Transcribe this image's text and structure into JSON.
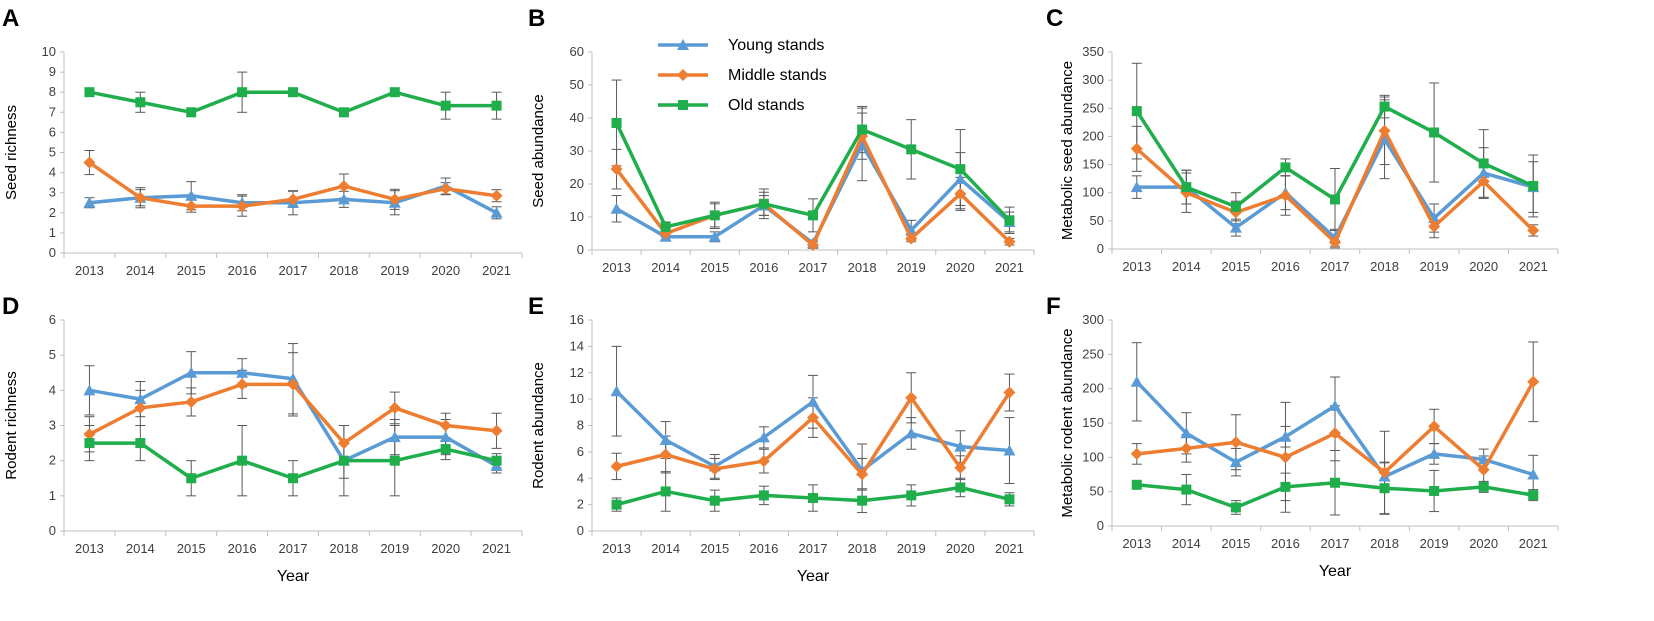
{
  "colors": {
    "young": "#5b9bd5",
    "middle": "#ed7d31",
    "old": "#1fae4b",
    "error": "#595959",
    "axis": "#bfbfbf"
  },
  "legend": [
    {
      "key": "young",
      "label": "Young stands",
      "marker": "triangle"
    },
    {
      "key": "middle",
      "label": "Middle stands",
      "marker": "diamond"
    },
    {
      "key": "old",
      "label": "Old stands",
      "marker": "square"
    }
  ],
  "chart_data": [
    {
      "type": "line",
      "panel": "A",
      "ylabel": "Seed richness",
      "xlabel": "",
      "categories": [
        "2013",
        "2014",
        "2015",
        "2016",
        "2017",
        "2018",
        "2019",
        "2020",
        "2021"
      ],
      "ylim": [
        0,
        10
      ],
      "ystep": 1,
      "series": [
        {
          "name": "Young stands",
          "key": "young",
          "values": [
            2.5,
            2.75,
            2.85,
            2.5,
            2.5,
            2.67,
            2.5,
            3.33,
            2.0
          ],
          "err": [
            0.25,
            0.5,
            0.7,
            0.4,
            0.6,
            0.4,
            0.6,
            0.4,
            0.3
          ]
        },
        {
          "name": "Middle stands",
          "key": "middle",
          "values": [
            4.5,
            2.75,
            2.33,
            2.33,
            2.67,
            3.33,
            2.67,
            3.2,
            2.85
          ],
          "err": [
            0.6,
            0.4,
            0.3,
            0.5,
            0.4,
            0.6,
            0.5,
            0.3,
            0.3
          ]
        },
        {
          "name": "Old stands",
          "key": "old",
          "values": [
            8.0,
            7.5,
            7.0,
            8.0,
            8.0,
            7.0,
            8.0,
            7.33,
            7.33
          ],
          "err": [
            0,
            0.5,
            0,
            1.0,
            0,
            0,
            0,
            0.67,
            0.67
          ]
        }
      ]
    },
    {
      "type": "line",
      "panel": "B",
      "ylabel": "Seed abundance",
      "xlabel": "",
      "categories": [
        "2013",
        "2014",
        "2015",
        "2016",
        "2017",
        "2018",
        "2019",
        "2020",
        "2021"
      ],
      "ylim": [
        0,
        60
      ],
      "ystep": 10,
      "series": [
        {
          "name": "Young stands",
          "key": "young",
          "values": [
            12.5,
            4.0,
            4.0,
            13.5,
            2.0,
            32.0,
            6.0,
            21.5,
            8.5
          ],
          "err": [
            4,
            1,
            1.5,
            3,
            1,
            11,
            3,
            8,
            3
          ]
        },
        {
          "name": "Middle stands",
          "key": "middle",
          "values": [
            24.5,
            5.0,
            10.5,
            14.0,
            1.5,
            34.5,
            3.5,
            17.0,
            2.5
          ],
          "err": [
            6,
            1,
            4,
            4.5,
            1,
            7,
            1,
            5,
            1
          ]
        },
        {
          "name": "Old stands",
          "key": "old",
          "values": [
            38.5,
            7.0,
            10.5,
            14.0,
            10.5,
            36.5,
            30.5,
            24.5,
            9.0
          ],
          "err": [
            13,
            1.5,
            3.5,
            3.5,
            5,
            7,
            9,
            12,
            4
          ]
        }
      ]
    },
    {
      "type": "line",
      "panel": "C",
      "ylabel": "Metabolic seed abundance",
      "xlabel": "",
      "categories": [
        "2013",
        "2014",
        "2015",
        "2016",
        "2017",
        "2018",
        "2019",
        "2020",
        "2021"
      ],
      "ylim": [
        0,
        350
      ],
      "ystep": 50,
      "series": [
        {
          "name": "Young stands",
          "key": "young",
          "values": [
            110,
            110,
            38,
            100,
            20,
            195,
            55,
            135,
            110
          ],
          "err": [
            20,
            30,
            15,
            30,
            15,
            70,
            25,
            45,
            45
          ]
        },
        {
          "name": "Middle stands",
          "key": "middle",
          "values": [
            178,
            100,
            65,
            95,
            12,
            210,
            40,
            120,
            33
          ],
          "err": [
            40,
            35,
            20,
            35,
            10,
            60,
            20,
            30,
            10
          ]
        },
        {
          "name": "Old stands",
          "key": "old",
          "values": [
            245,
            110,
            75,
            145,
            88,
            253,
            207,
            152,
            112
          ],
          "err": [
            85,
            30,
            25,
            15,
            55,
            20,
            88,
            60,
            55
          ]
        }
      ]
    },
    {
      "type": "line",
      "panel": "D",
      "ylabel": "Rodent richness",
      "xlabel": "Year",
      "categories": [
        "2013",
        "2014",
        "2015",
        "2016",
        "2017",
        "2018",
        "2019",
        "2020",
        "2021"
      ],
      "ylim": [
        0,
        6
      ],
      "ystep": 1,
      "series": [
        {
          "name": "Young stands",
          "key": "young",
          "values": [
            4.0,
            3.75,
            4.5,
            4.5,
            4.33,
            2.0,
            2.67,
            2.67,
            1.85
          ],
          "err": [
            0.7,
            0.5,
            0.6,
            0.4,
            1.0,
            0.5,
            0.5,
            0.5,
            0.2
          ]
        },
        {
          "name": "Middle stands",
          "key": "middle",
          "values": [
            2.75,
            3.5,
            3.67,
            4.17,
            4.17,
            2.5,
            3.5,
            3.0,
            2.85
          ],
          "err": [
            0.5,
            0.5,
            0.4,
            0.4,
            0.9,
            0.5,
            0.45,
            0.35,
            0.5
          ]
        },
        {
          "name": "Old stands",
          "key": "old",
          "values": [
            2.5,
            2.5,
            1.5,
            2.0,
            1.5,
            2.0,
            2.0,
            2.33,
            2.0
          ],
          "err": [
            0.5,
            0.5,
            0.5,
            1.0,
            0.5,
            1.0,
            1.0,
            0.3,
            0.2
          ]
        }
      ]
    },
    {
      "type": "line",
      "panel": "E",
      "ylabel": "Rodent abundance",
      "xlabel": "Year",
      "categories": [
        "2013",
        "2014",
        "2015",
        "2016",
        "2017",
        "2018",
        "2019",
        "2020",
        "2021"
      ],
      "ylim": [
        0,
        16
      ],
      "ystep": 2,
      "series": [
        {
          "name": "Young stands",
          "key": "young",
          "values": [
            10.6,
            6.9,
            4.9,
            7.1,
            9.8,
            4.6,
            7.4,
            6.4,
            6.1
          ],
          "err": [
            3.4,
            1.4,
            0.9,
            0.8,
            2.0,
            2.0,
            1.2,
            1.2,
            2.5
          ]
        },
        {
          "name": "Middle stands",
          "key": "middle",
          "values": [
            4.9,
            5.8,
            4.7,
            5.3,
            8.6,
            4.3,
            10.1,
            4.8,
            10.5
          ],
          "err": [
            1.0,
            1.4,
            0.8,
            0.9,
            1.5,
            1.2,
            1.9,
            0.9,
            1.4
          ]
        },
        {
          "name": "Old stands",
          "key": "old",
          "values": [
            2.0,
            3.0,
            2.3,
            2.7,
            2.5,
            2.3,
            2.7,
            3.3,
            2.4
          ],
          "err": [
            0.5,
            1.5,
            0.8,
            0.7,
            1.0,
            0.9,
            0.8,
            0.7,
            0.5
          ]
        }
      ]
    },
    {
      "type": "line",
      "panel": "F",
      "ylabel": "Metabolic rodent abundance",
      "xlabel": "Year",
      "categories": [
        "2013",
        "2014",
        "2015",
        "2016",
        "2017",
        "2018",
        "2019",
        "2020",
        "2021"
      ],
      "ylim": [
        0,
        300
      ],
      "ystep": 50,
      "series": [
        {
          "name": "Young stands",
          "key": "young",
          "values": [
            210,
            135,
            93,
            130,
            175,
            72,
            105,
            97,
            75
          ],
          "err": [
            57,
            30,
            20,
            15,
            42,
            20,
            15,
            15,
            28
          ]
        },
        {
          "name": "Middle stands",
          "key": "middle",
          "values": [
            105,
            113,
            122,
            100,
            135,
            78,
            145,
            82,
            210
          ],
          "err": [
            15,
            20,
            40,
            80,
            40,
            60,
            25,
            20,
            58
          ]
        },
        {
          "name": "Old stands",
          "key": "old",
          "values": [
            60,
            53,
            27,
            57,
            63,
            55,
            51,
            57,
            45
          ],
          "err": [
            5,
            22,
            10,
            20,
            47,
            38,
            30,
            8,
            8
          ]
        }
      ]
    }
  ]
}
